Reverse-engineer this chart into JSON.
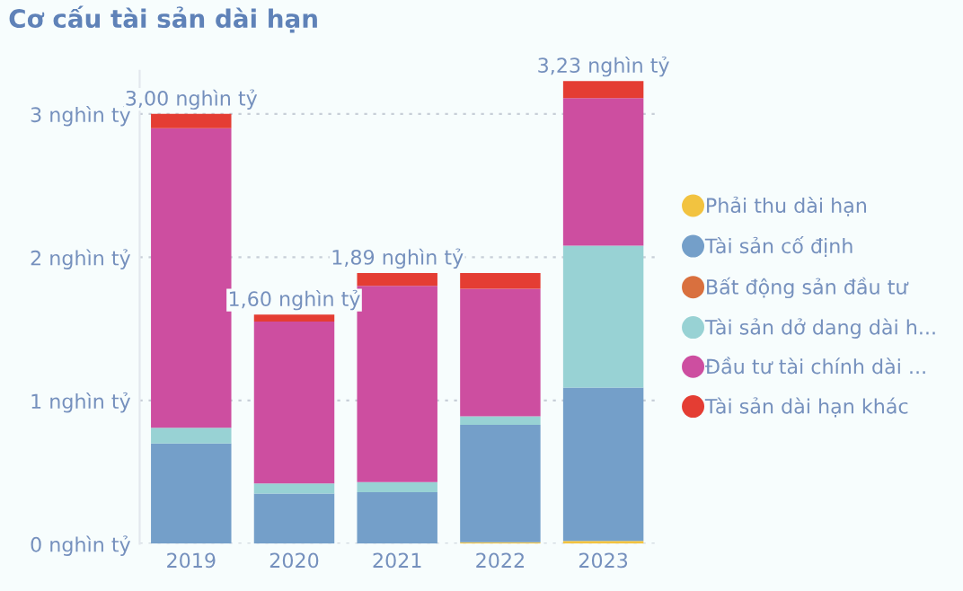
{
  "chart_data": {
    "type": "bar",
    "title": "Cơ cấu tài sản dài hạn",
    "stacked": true,
    "categories": [
      "2019",
      "2020",
      "2021",
      "2022",
      "2023"
    ],
    "series": [
      {
        "name": "Phải thu dài hạn",
        "color": "#f2c340",
        "values": [
          0,
          0,
          0,
          0.01,
          0.02
        ]
      },
      {
        "name": "Tài sản cố định",
        "color": "#749fc9",
        "values": [
          0.7,
          0.35,
          0.36,
          0.82,
          1.07
        ]
      },
      {
        "name": "Bất động sản đầu tư",
        "color": "#d9703e",
        "values": [
          0,
          0,
          0,
          0,
          0
        ]
      },
      {
        "name": "Tài sản dở dang dài h...",
        "color": "#98d2d4",
        "values": [
          0.11,
          0.07,
          0.07,
          0.06,
          0.99
        ]
      },
      {
        "name": "Đầu tư tài chính dài ...",
        "color": "#cd4ea0",
        "values": [
          2.09,
          1.13,
          1.37,
          0.89,
          1.03
        ]
      },
      {
        "name": "Tài sản dài hạn khác",
        "color": "#e43d33",
        "values": [
          0.1,
          0.05,
          0.09,
          0.11,
          0.12
        ]
      }
    ],
    "totals": [
      "3,00 nghìn tỷ",
      "1,60 nghìn tỷ",
      "1,89 nghìn tỷ",
      null,
      "3,23 nghìn tỷ"
    ],
    "ylim": [
      0,
      3.3
    ],
    "yticks": [
      {
        "value": 0,
        "label": "0 nghìn tỷ"
      },
      {
        "value": 1,
        "label": "1 nghìn tỷ"
      },
      {
        "value": 2,
        "label": "2 nghìn tỷ"
      },
      {
        "value": 3,
        "label": "3 nghìn tỷ"
      }
    ],
    "grid": "y",
    "legend": "right"
  }
}
